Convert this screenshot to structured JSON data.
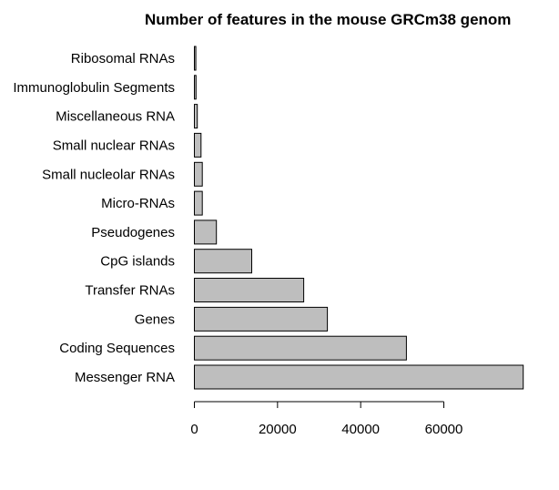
{
  "chart_data": {
    "type": "bar",
    "orientation": "horizontal",
    "title": "Number of features in the mouse GRCm38 genom",
    "xlabel": "",
    "ylabel": "",
    "categories": [
      "Messenger RNA",
      "Coding Sequences",
      "Genes",
      "Transfer RNAs",
      "CpG islands",
      "Pseudogenes",
      "Micro-RNAs",
      "Small nucleolar RNAs",
      "Small nuclear RNAs",
      "Miscellaneous RNA",
      "Immunoglobulin Segments",
      "Ribosomal RNAs"
    ],
    "values": [
      79100,
      51000,
      32000,
      26300,
      13800,
      5300,
      1900,
      1900,
      1600,
      700,
      400,
      350
    ],
    "xlim": [
      0,
      80000
    ],
    "xticks": [
      0,
      20000,
      40000,
      60000
    ],
    "xtick_labels": [
      "0",
      "20000",
      "40000",
      "60000"
    ],
    "bar_color": "#bebebe",
    "bar_border_color": "#000000",
    "grid": false,
    "legend": "none"
  }
}
